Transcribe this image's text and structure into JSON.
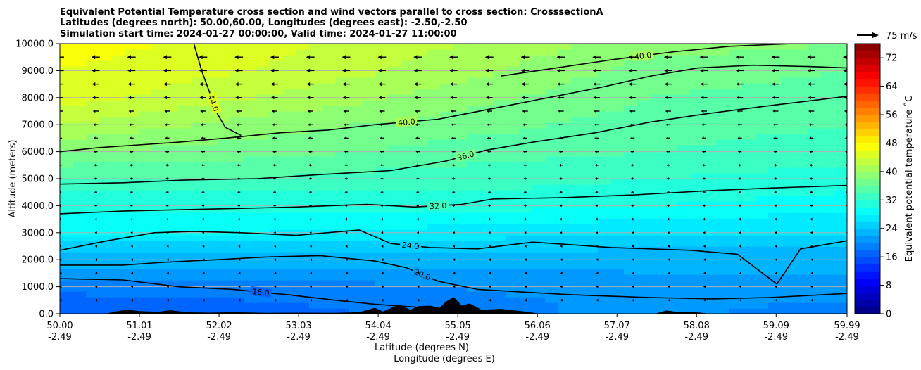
{
  "chart_data": {
    "type": "contourf",
    "title_lines": [
      "Equivalent Potential Temperature cross section and wind vectors parallel to cross section: CrosssectionA",
      "Latitudes (degrees north): 50.00,60.00, Longitudes (degrees east): -2.50,-2.50",
      "Simulation start time: 2024-01-27 00:00:00, Valid time: 2024-01-27 11:00:00"
    ],
    "xlabel_line1": "Latitude (degrees N)",
    "xlabel_line2": "Longitude (degrees E)",
    "ylabel": "Altitude (meters)",
    "xlim": [
      50.0,
      59.99
    ],
    "ylim": [
      0,
      10000
    ],
    "x_ticks": [
      {
        "lat": "50.00",
        "lon": "-2.49",
        "value": 50.0
      },
      {
        "lat": "51.01",
        "lon": "-2.49",
        "value": 51.01
      },
      {
        "lat": "52.02",
        "lon": "-2.49",
        "value": 52.02
      },
      {
        "lat": "53.03",
        "lon": "-2.49",
        "value": 53.03
      },
      {
        "lat": "54.04",
        "lon": "-2.49",
        "value": 54.04
      },
      {
        "lat": "55.05",
        "lon": "-2.49",
        "value": 55.05
      },
      {
        "lat": "56.06",
        "lon": "-2.49",
        "value": 56.06
      },
      {
        "lat": "57.07",
        "lon": "-2.49",
        "value": 57.07
      },
      {
        "lat": "58.08",
        "lon": "-2.49",
        "value": 58.08
      },
      {
        "lat": "59.09",
        "lon": "-2.49",
        "value": 59.09
      },
      {
        "lat": "59.99",
        "lon": "-2.49",
        "value": 59.99
      }
    ],
    "y_ticks": [
      {
        "label": "0.0",
        "value": 0
      },
      {
        "label": "1000.0",
        "value": 1000
      },
      {
        "label": "2000.0",
        "value": 2000
      },
      {
        "label": "3000.0",
        "value": 3000
      },
      {
        "label": "4000.0",
        "value": 4000
      },
      {
        "label": "5000.0",
        "value": 5000
      },
      {
        "label": "6000.0",
        "value": 6000
      },
      {
        "label": "7000.0",
        "value": 7000
      },
      {
        "label": "8000.0",
        "value": 8000
      },
      {
        "label": "9000.0",
        "value": 9000
      },
      {
        "label": "10000.0",
        "value": 10000
      }
    ],
    "grid": "horizontal lines at y ticks",
    "colorbar": {
      "label": "Equivalent potential temperature ˚C",
      "range": [
        0,
        76
      ],
      "ticks": [
        "0",
        "8",
        "16",
        "24",
        "32",
        "40",
        "48",
        "56",
        "64",
        "72"
      ],
      "tick_values": [
        0,
        8,
        16,
        24,
        32,
        40,
        48,
        56,
        64,
        72
      ],
      "colormap": "jet"
    },
    "quiver_key": {
      "label": "75 m/s",
      "value": 75
    },
    "theta_e_profiles": [
      {
        "lat": 50.0,
        "heights": [
          0,
          500,
          1000,
          1500,
          2000,
          2500,
          3000,
          3500,
          4000,
          4500,
          5000,
          5500,
          6000,
          7000,
          8000,
          9000,
          10000
        ],
        "theta_e": [
          16,
          17,
          19,
          21,
          23,
          25,
          28,
          29,
          31,
          32,
          34,
          36,
          38,
          42,
          45,
          46,
          47
        ]
      },
      {
        "lat": 52.5,
        "heights": [
          0,
          500,
          1000,
          1500,
          2000,
          2500,
          3000,
          3500,
          4000,
          4500,
          5000,
          5500,
          6000,
          7000,
          8000,
          9000,
          10000
        ],
        "theta_e": [
          17,
          18,
          19,
          21,
          23,
          25,
          28,
          29,
          31,
          32,
          34,
          35,
          37,
          39,
          42,
          44,
          45
        ]
      },
      {
        "lat": 55.0,
        "heights": [
          0,
          500,
          1000,
          1500,
          2000,
          2500,
          3000,
          3500,
          4000,
          4500,
          5000,
          5500,
          6000,
          7000,
          8000,
          9000,
          10000
        ],
        "theta_e": [
          19,
          19,
          20,
          21,
          23,
          25,
          27,
          29,
          31,
          32,
          33,
          34,
          35,
          37,
          39,
          41,
          42
        ]
      },
      {
        "lat": 57.5,
        "heights": [
          0,
          500,
          1000,
          1500,
          2000,
          2500,
          3000,
          3500,
          4000,
          4500,
          5000,
          5500,
          6000,
          7000,
          8000,
          9000,
          10000
        ],
        "theta_e": [
          21,
          21,
          22,
          22,
          23,
          24,
          26,
          28,
          30,
          31,
          32,
          33,
          34,
          35,
          36,
          37,
          39
        ]
      },
      {
        "lat": 59.99,
        "heights": [
          0,
          500,
          1000,
          1500,
          2000,
          2500,
          3000,
          3500,
          4000,
          4500,
          5000,
          5500,
          6000,
          7000,
          8000,
          9000,
          10000
        ],
        "theta_e": [
          18,
          20,
          21,
          22,
          23,
          24,
          26,
          27,
          29,
          30,
          31,
          32,
          33,
          34,
          35,
          36,
          38
        ]
      }
    ],
    "contours": [
      {
        "label": "16.0",
        "value": 16,
        "points": [
          [
            50.0,
            1300
          ],
          [
            50.8,
            1250
          ],
          [
            51.5,
            1000
          ],
          [
            52.2,
            900
          ],
          [
            52.9,
            700
          ],
          [
            53.5,
            500
          ],
          [
            54.0,
            350
          ],
          [
            54.5,
            250
          ],
          [
            54.9,
            150
          ]
        ]
      },
      {
        "label": "20.0",
        "value": 20,
        "points": [
          [
            50.0,
            1800
          ],
          [
            50.8,
            1800
          ],
          [
            51.3,
            1900
          ],
          [
            52.0,
            2000
          ],
          [
            52.6,
            2100
          ],
          [
            53.3,
            2150
          ],
          [
            54.0,
            1950
          ],
          [
            54.4,
            1700
          ],
          [
            54.8,
            1200
          ],
          [
            55.3,
            900
          ],
          [
            55.9,
            800
          ],
          [
            56.5,
            700
          ],
          [
            57.5,
            600
          ],
          [
            58.3,
            550
          ],
          [
            59.0,
            600
          ],
          [
            59.99,
            750
          ]
        ]
      },
      {
        "label": "24.0",
        "value": 24,
        "points": [
          [
            50.0,
            2350
          ],
          [
            50.6,
            2700
          ],
          [
            51.2,
            3000
          ],
          [
            51.7,
            3050
          ],
          [
            52.3,
            3000
          ],
          [
            53.0,
            2900
          ],
          [
            53.8,
            3100
          ],
          [
            54.2,
            2600
          ],
          [
            54.7,
            2450
          ],
          [
            55.3,
            2400
          ],
          [
            56.0,
            2650
          ],
          [
            57.0,
            2450
          ],
          [
            58.0,
            2350
          ],
          [
            58.6,
            2200
          ],
          [
            59.1,
            1100
          ],
          [
            59.4,
            2400
          ],
          [
            59.99,
            2700
          ]
        ]
      },
      {
        "label": "32.0",
        "value": 32,
        "points": [
          [
            50.0,
            3700
          ],
          [
            50.8,
            3800
          ],
          [
            51.5,
            3850
          ],
          [
            52.3,
            3900
          ],
          [
            53.0,
            3950
          ],
          [
            53.9,
            4050
          ],
          [
            54.5,
            3950
          ],
          [
            55.1,
            4050
          ],
          [
            55.5,
            4250
          ],
          [
            56.4,
            4300
          ],
          [
            57.3,
            4400
          ],
          [
            58.2,
            4550
          ],
          [
            59.0,
            4650
          ],
          [
            59.99,
            4750
          ]
        ]
      },
      {
        "label": "36.0",
        "value": 36,
        "points": [
          [
            50.0,
            4800
          ],
          [
            50.8,
            4850
          ],
          [
            51.6,
            4950
          ],
          [
            52.5,
            5000
          ],
          [
            53.3,
            5150
          ],
          [
            54.2,
            5300
          ],
          [
            54.9,
            5650
          ],
          [
            55.4,
            6050
          ],
          [
            56.0,
            6350
          ],
          [
            56.8,
            6700
          ],
          [
            57.5,
            7100
          ],
          [
            58.2,
            7400
          ],
          [
            59.0,
            7700
          ],
          [
            59.99,
            8050
          ]
        ]
      },
      {
        "label": "40.0",
        "value": 40,
        "points": [
          [
            50.0,
            6000
          ],
          [
            50.5,
            6150
          ],
          [
            51.0,
            6250
          ],
          [
            51.5,
            6350
          ],
          [
            52.1,
            6500
          ],
          [
            52.8,
            6700
          ],
          [
            53.4,
            6800
          ],
          [
            54.0,
            7000
          ],
          [
            54.8,
            7200
          ],
          [
            55.5,
            7600
          ],
          [
            56.2,
            8000
          ],
          [
            56.9,
            8400
          ],
          [
            57.5,
            8800
          ],
          [
            58.1,
            9100
          ],
          [
            58.8,
            9200
          ],
          [
            59.5,
            9150
          ],
          [
            59.99,
            9100
          ]
        ]
      },
      {
        "label": "44.0",
        "value": 44,
        "points": [
          [
            51.7,
            10000
          ],
          [
            51.8,
            9000
          ],
          [
            51.9,
            8200
          ],
          [
            52.0,
            7400
          ],
          [
            52.1,
            6900
          ],
          [
            52.3,
            6600
          ]
        ]
      },
      {
        "label": "40.0",
        "value": 40,
        "points": [
          [
            55.6,
            8800
          ],
          [
            56.3,
            9100
          ],
          [
            57.0,
            9400
          ],
          [
            57.8,
            9700
          ],
          [
            58.5,
            9900
          ],
          [
            59.3,
            10000
          ]
        ]
      }
    ],
    "wind_vector_direction": "negative x (toward south along section)",
    "wind_magnitude_by_height": [
      {
        "height": 500,
        "speed_ms": 2
      },
      {
        "height": 1000,
        "speed_ms": 2
      },
      {
        "height": 1500,
        "speed_ms": 3
      },
      {
        "height": 2000,
        "speed_ms": 4
      },
      {
        "height": 2500,
        "speed_ms": 5
      },
      {
        "height": 3000,
        "speed_ms": 6
      },
      {
        "height": 3500,
        "speed_ms": 8
      },
      {
        "height": 4000,
        "speed_ms": 9
      },
      {
        "height": 4500,
        "speed_ms": 10
      },
      {
        "height": 5000,
        "speed_ms": 11
      },
      {
        "height": 5500,
        "speed_ms": 12
      },
      {
        "height": 6000,
        "speed_ms": 13
      },
      {
        "height": 6500,
        "speed_ms": 15
      },
      {
        "height": 7000,
        "speed_ms": 17
      },
      {
        "height": 7500,
        "speed_ms": 20
      },
      {
        "height": 8000,
        "speed_ms": 23
      },
      {
        "height": 8500,
        "speed_ms": 25
      },
      {
        "height": 9000,
        "speed_ms": 27
      },
      {
        "height": 9500,
        "speed_ms": 29
      }
    ],
    "terrain": [
      {
        "lat": 50.58,
        "h": 0
      },
      {
        "lat": 50.7,
        "h": 80
      },
      {
        "lat": 50.85,
        "h": 150
      },
      {
        "lat": 51.0,
        "h": 100
      },
      {
        "lat": 51.25,
        "h": 70
      },
      {
        "lat": 51.4,
        "h": 130
      },
      {
        "lat": 51.6,
        "h": 60
      },
      {
        "lat": 51.9,
        "h": 40
      },
      {
        "lat": 52.2,
        "h": 60
      },
      {
        "lat": 52.6,
        "h": 30
      },
      {
        "lat": 53.0,
        "h": 40
      },
      {
        "lat": 53.5,
        "h": 30
      },
      {
        "lat": 53.8,
        "h": 60
      },
      {
        "lat": 54.0,
        "h": 220
      },
      {
        "lat": 54.1,
        "h": 80
      },
      {
        "lat": 54.3,
        "h": 330
      },
      {
        "lat": 54.45,
        "h": 150
      },
      {
        "lat": 54.55,
        "h": 280
      },
      {
        "lat": 54.7,
        "h": 300
      },
      {
        "lat": 54.82,
        "h": 220
      },
      {
        "lat": 54.9,
        "h": 450
      },
      {
        "lat": 55.0,
        "h": 620
      },
      {
        "lat": 55.1,
        "h": 300
      },
      {
        "lat": 55.2,
        "h": 380
      },
      {
        "lat": 55.35,
        "h": 150
      },
      {
        "lat": 55.6,
        "h": 180
      },
      {
        "lat": 55.9,
        "h": 80
      },
      {
        "lat": 56.1,
        "h": 0
      },
      {
        "lat": 57.55,
        "h": 0
      },
      {
        "lat": 57.7,
        "h": 120
      },
      {
        "lat": 57.85,
        "h": 60
      },
      {
        "lat": 58.1,
        "h": 50
      },
      {
        "lat": 58.25,
        "h": 0
      }
    ]
  }
}
